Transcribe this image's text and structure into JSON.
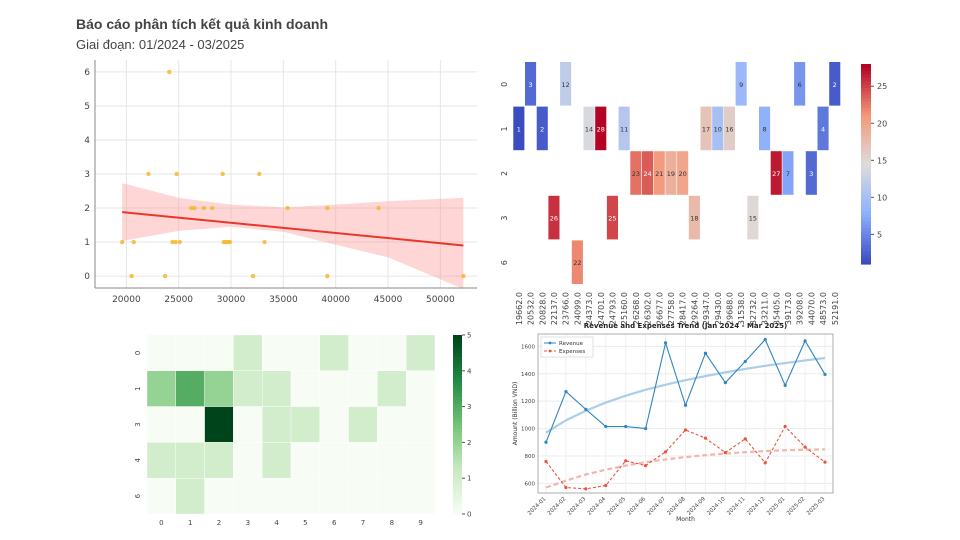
{
  "report": {
    "title": "Báo cáo phân tích kết quả kinh doanh",
    "subtitle": "Giai đoạn: 01/2024 - 03/2025"
  },
  "chart_data": [
    {
      "type": "scatter",
      "xlim": [
        17000,
        53500
      ],
      "ylim": [
        -0.35,
        6.35
      ],
      "xticks": [
        20000,
        25000,
        30000,
        35000,
        40000,
        45000,
        50000
      ],
      "yticks": [
        0,
        1,
        2,
        3,
        4,
        5,
        6
      ],
      "grid": true,
      "points": [
        [
          19600,
          1
        ],
        [
          20500,
          0
        ],
        [
          20700,
          1
        ],
        [
          22100,
          3
        ],
        [
          23700,
          0
        ],
        [
          24100,
          6
        ],
        [
          24400,
          1
        ],
        [
          24700,
          1
        ],
        [
          24800,
          3
        ],
        [
          25100,
          1
        ],
        [
          26200,
          2
        ],
        [
          26500,
          2
        ],
        [
          27400,
          2
        ],
        [
          28200,
          2
        ],
        [
          29200,
          3
        ],
        [
          29300,
          1
        ],
        [
          29500,
          1
        ],
        [
          29700,
          1
        ],
        [
          29900,
          1
        ],
        [
          32100,
          0
        ],
        [
          32700,
          3
        ],
        [
          33200,
          1
        ],
        [
          35400,
          2
        ],
        [
          39200,
          0
        ],
        [
          39200,
          2
        ],
        [
          44100,
          2
        ],
        [
          52200,
          0
        ]
      ],
      "regression": {
        "start": [
          19600,
          1.88
        ],
        "end": [
          52200,
          0.9
        ]
      },
      "ci_band": {
        "x": [
          19600,
          25000,
          30000,
          35000,
          40000,
          45000,
          52200
        ],
        "upper": [
          2.73,
          2.3,
          2.1,
          2.02,
          2.1,
          2.2,
          2.3
        ],
        "lower": [
          1.03,
          1.33,
          1.45,
          1.3,
          0.92,
          0.55,
          -0.38
        ]
      }
    },
    {
      "type": "heatmap",
      "rows": [
        "0",
        "1",
        "2",
        "3",
        "6"
      ],
      "columns": [
        "19662.0",
        "20532.0",
        "20828.0",
        "22137.0",
        "23766.0",
        "24099.0",
        "24373.0",
        "24701.0",
        "24793.0",
        "25160.0",
        "26268.0",
        "26302.0",
        "26677.0",
        "27758.0",
        "28417.0",
        "29264.0",
        "29347.0",
        "29430.0",
        "29688.0",
        "31538.0",
        "32732.0",
        "33211.0",
        "35405.0",
        "39173.0",
        "39208.0",
        "44070.0",
        "48573.0",
        "52191.0"
      ],
      "cells": [
        {
          "row": 0,
          "col": 1,
          "value": 3
        },
        {
          "row": 0,
          "col": 4,
          "value": 12
        },
        {
          "row": 0,
          "col": 19,
          "value": 9
        },
        {
          "row": 0,
          "col": 24,
          "value": 6
        },
        {
          "row": 0,
          "col": 27,
          "value": 2
        },
        {
          "row": 1,
          "col": 0,
          "value": 1
        },
        {
          "row": 1,
          "col": 2,
          "value": 2
        },
        {
          "row": 1,
          "col": 6,
          "value": 14
        },
        {
          "row": 1,
          "col": 7,
          "value": 28
        },
        {
          "row": 1,
          "col": 9,
          "value": 11
        },
        {
          "row": 1,
          "col": 16,
          "value": 17
        },
        {
          "row": 1,
          "col": 17,
          "value": 10
        },
        {
          "row": 1,
          "col": 18,
          "value": 16
        },
        {
          "row": 1,
          "col": 21,
          "value": 8
        },
        {
          "row": 1,
          "col": 26,
          "value": 4
        },
        {
          "row": 2,
          "col": 10,
          "value": 23
        },
        {
          "row": 2,
          "col": 11,
          "value": 24
        },
        {
          "row": 2,
          "col": 12,
          "value": 21
        },
        {
          "row": 2,
          "col": 13,
          "value": 19
        },
        {
          "row": 2,
          "col": 14,
          "value": 20
        },
        {
          "row": 2,
          "col": 22,
          "value": 27
        },
        {
          "row": 2,
          "col": 23,
          "value": 7
        },
        {
          "row": 2,
          "col": 25,
          "value": 3
        },
        {
          "row": 3,
          "col": 3,
          "value": 26
        },
        {
          "row": 3,
          "col": 8,
          "value": 25
        },
        {
          "row": 3,
          "col": 15,
          "value": 18
        },
        {
          "row": 3,
          "col": 20,
          "value": 15
        },
        {
          "row": 4,
          "col": 5,
          "value": 22
        }
      ],
      "colorbar": {
        "min": 1,
        "max": 28,
        "ticks": [
          5,
          10,
          15,
          20,
          25
        ],
        "colormap": "coolwarm"
      }
    },
    {
      "type": "heatmap",
      "rows": [
        "0",
        "1",
        "3",
        "4",
        "6"
      ],
      "columns": [
        "0",
        "1",
        "2",
        "3",
        "4",
        "5",
        "6",
        "7",
        "8",
        "9"
      ],
      "values": [
        [
          0,
          0,
          0,
          1,
          0,
          0,
          1,
          0,
          0,
          1
        ],
        [
          2,
          3,
          2,
          1,
          1,
          0,
          0,
          0,
          1,
          0
        ],
        [
          0,
          0,
          5,
          0,
          1,
          1,
          0,
          1,
          0,
          0
        ],
        [
          1,
          1,
          1,
          0,
          1,
          0,
          0,
          0,
          0,
          0
        ],
        [
          0,
          1,
          0,
          0,
          0,
          0,
          0,
          0,
          0,
          0
        ]
      ],
      "colorbar": {
        "min": 0,
        "max": 5,
        "ticks": [
          0,
          1,
          2,
          3,
          4,
          5
        ],
        "colormap": "Greens"
      }
    },
    {
      "type": "line",
      "title": "Revenue and Expenses Trend (Jan 2024 - Mar 2025)",
      "xlabel": "Month",
      "ylabel": "Amount (Billion VND)",
      "categories": [
        "2024-01",
        "2024-02",
        "2024-03",
        "2024-04",
        "2024-05",
        "2024-06",
        "2024-07",
        "2024-08",
        "2024-09",
        "2024-10",
        "2024-11",
        "2024-12",
        "2025-01",
        "2025-02",
        "2025-03"
      ],
      "ylim": [
        530,
        1690
      ],
      "yticks": [
        600,
        800,
        1000,
        1200,
        1400,
        1600
      ],
      "grid": true,
      "legend": "top-left",
      "series": [
        {
          "name": "Revenue",
          "color": "#2f86be",
          "values": [
            900,
            1270,
            1140,
            1015,
            1015,
            1000,
            1625,
            1170,
            1550,
            1335,
            1490,
            1650,
            1315,
            1640,
            1395
          ]
        },
        {
          "name": "Expenses",
          "color": "#e8553f",
          "values": [
            760,
            570,
            560,
            585,
            765,
            730,
            830,
            990,
            930,
            825,
            925,
            750,
            1015,
            865,
            755
          ]
        }
      ],
      "trend_lines": [
        {
          "color": "#aacde8",
          "values": [
            970,
            1060,
            1130,
            1190,
            1240,
            1283,
            1320,
            1353,
            1383,
            1410,
            1435,
            1458,
            1478,
            1497,
            1515
          ]
        },
        {
          "color": "#f4b5aa",
          "values": [
            570,
            620,
            665,
            700,
            730,
            755,
            775,
            792,
            806,
            818,
            828,
            836,
            842,
            846,
            848
          ]
        }
      ]
    }
  ]
}
